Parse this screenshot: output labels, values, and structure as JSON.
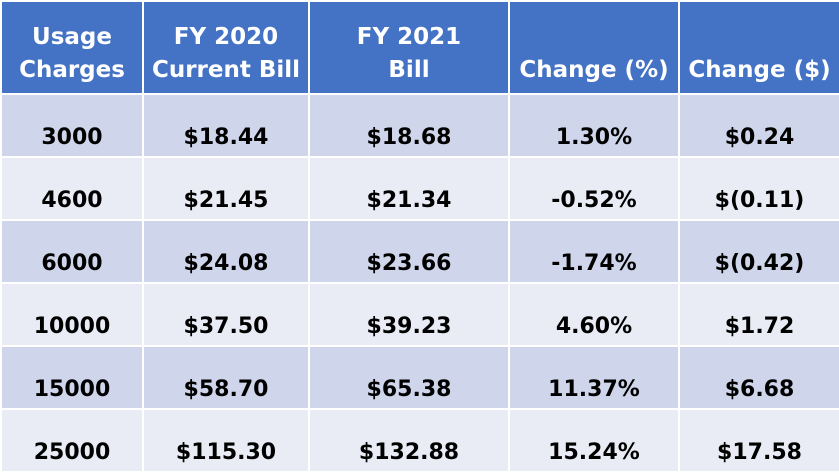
{
  "chart_data": {
    "type": "table",
    "columns": [
      [
        "Usage",
        "Charges"
      ],
      [
        "FY 2020",
        "Current Bill"
      ],
      [
        "FY 2021",
        "Bill"
      ],
      [
        "Change (%)"
      ],
      [
        "Change ($)"
      ]
    ],
    "rows": [
      [
        "3000",
        "$18.44",
        "$18.68",
        "1.30%",
        "$0.24"
      ],
      [
        "4600",
        "$21.45",
        "$21.34",
        "-0.52%",
        "$(0.11)"
      ],
      [
        "6000",
        "$24.08",
        "$23.66",
        "-1.74%",
        "$(0.42)"
      ],
      [
        "10000",
        "$37.50",
        "$39.23",
        "4.60%",
        "$1.72"
      ],
      [
        "15000",
        "$58.70",
        "$65.38",
        "11.37%",
        "$6.68"
      ],
      [
        "25000",
        "$115.30",
        "$132.88",
        "15.24%",
        "$17.58"
      ]
    ],
    "colors": {
      "header_bg": "#4472c4",
      "header_text": "#ffffff",
      "row_band_dark": "#cfd5ea",
      "row_band_light": "#e9ebf5",
      "grid": "#ffffff"
    }
  }
}
